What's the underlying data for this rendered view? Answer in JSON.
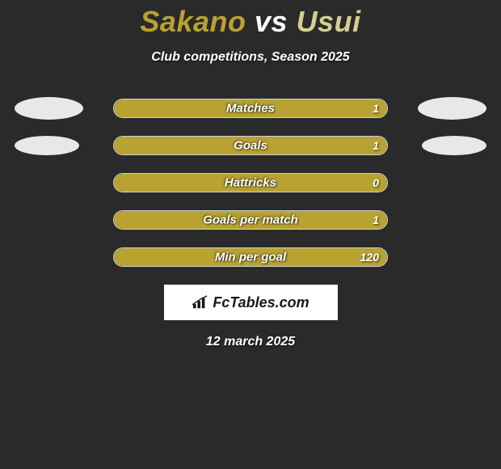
{
  "title": {
    "p1": "Sakano",
    "vs": "vs",
    "p2": "Usui"
  },
  "subtitle": "Club competitions, Season 2025",
  "colors": {
    "background": "#2a2a2a",
    "p1_color": "#b8a232",
    "p2_color": "#d4cf91",
    "bar_fill": "#b8a232",
    "bar_border": "#d0d0d0",
    "oval_fill": "#e8e8e8",
    "text": "#ffffff",
    "logo_bg": "#ffffff"
  },
  "rows": [
    {
      "label": "Matches",
      "value": "1",
      "fill_pct": 100,
      "oval_left_w": 85,
      "oval_left_h": 28,
      "oval_right_w": 85,
      "oval_right_h": 28
    },
    {
      "label": "Goals",
      "value": "1",
      "fill_pct": 100,
      "oval_left_w": 80,
      "oval_left_h": 24,
      "oval_right_w": 80,
      "oval_right_h": 24
    },
    {
      "label": "Hattricks",
      "value": "0",
      "fill_pct": 100,
      "oval_left_w": 0,
      "oval_left_h": 0,
      "oval_right_w": 0,
      "oval_right_h": 0
    },
    {
      "label": "Goals per match",
      "value": "1",
      "fill_pct": 100,
      "oval_left_w": 0,
      "oval_left_h": 0,
      "oval_right_w": 0,
      "oval_right_h": 0
    },
    {
      "label": "Min per goal",
      "value": "120",
      "fill_pct": 100,
      "oval_left_w": 0,
      "oval_left_h": 0,
      "oval_right_w": 0,
      "oval_right_h": 0
    }
  ],
  "logo_text": "FcTables.com",
  "date": "12 march 2025"
}
